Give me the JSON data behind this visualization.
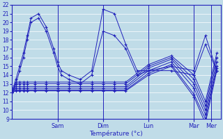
{
  "xlabel": "Température (°c)",
  "bg_color": "#c0dce8",
  "line_color": "#2020bb",
  "ylim": [
    9,
    22
  ],
  "yticks": [
    9,
    10,
    11,
    12,
    13,
    14,
    15,
    16,
    17,
    18,
    19,
    20,
    21,
    22
  ],
  "xlim": [
    0,
    220
  ],
  "day_ticks": [
    48,
    96,
    144,
    192,
    210
  ],
  "day_labels": [
    "Sam",
    "Dim",
    "Lun",
    "Mar",
    "Mer"
  ],
  "series": [
    {
      "x": [
        0,
        4,
        8,
        12,
        16,
        20,
        28,
        36,
        44,
        48,
        52,
        60,
        72,
        84,
        96,
        108,
        120,
        132,
        144,
        168,
        192,
        204,
        216
      ],
      "y": [
        12.2,
        13.5,
        15.0,
        16.5,
        18.5,
        20.5,
        21.0,
        19.5,
        17.0,
        15.5,
        14.5,
        14.0,
        13.5,
        14.5,
        21.5,
        21.0,
        17.5,
        14.5,
        14.5,
        15.0,
        14.5,
        18.5,
        14.5
      ]
    },
    {
      "x": [
        0,
        4,
        8,
        12,
        16,
        20,
        28,
        36,
        44,
        48,
        52,
        60,
        72,
        84,
        96,
        108,
        120,
        132,
        144,
        168,
        192,
        204,
        216
      ],
      "y": [
        12.0,
        13.0,
        14.5,
        16.0,
        18.0,
        20.0,
        20.5,
        19.0,
        16.5,
        15.0,
        14.0,
        13.5,
        13.0,
        14.0,
        19.0,
        18.5,
        17.0,
        14.0,
        14.5,
        14.5,
        14.0,
        17.5,
        14.5
      ]
    },
    {
      "x": [
        0,
        4,
        8,
        12,
        16,
        24,
        36,
        48,
        60,
        72,
        84,
        96,
        108,
        120,
        144,
        168,
        192,
        204,
        216
      ],
      "y": [
        12.0,
        12.2,
        12.2,
        12.2,
        12.2,
        12.2,
        12.2,
        12.2,
        12.2,
        12.2,
        12.2,
        12.2,
        12.2,
        12.2,
        14.0,
        15.0,
        11.5,
        8.5,
        14.5
      ]
    },
    {
      "x": [
        0,
        4,
        8,
        12,
        16,
        24,
        36,
        48,
        60,
        72,
        84,
        96,
        108,
        120,
        144,
        168,
        192,
        204,
        216
      ],
      "y": [
        12.0,
        12.3,
        12.3,
        12.3,
        12.3,
        12.3,
        12.3,
        12.3,
        12.3,
        12.3,
        12.3,
        12.3,
        12.3,
        12.3,
        14.2,
        15.2,
        11.8,
        9.0,
        14.8
      ]
    },
    {
      "x": [
        0,
        4,
        8,
        12,
        16,
        24,
        36,
        48,
        60,
        72,
        84,
        96,
        108,
        120,
        144,
        168,
        192,
        204,
        216
      ],
      "y": [
        12.0,
        12.5,
        12.5,
        12.5,
        12.5,
        12.5,
        12.5,
        12.5,
        12.5,
        12.5,
        12.5,
        12.5,
        12.5,
        12.5,
        14.5,
        15.5,
        12.5,
        9.5,
        15.0
      ]
    },
    {
      "x": [
        0,
        4,
        8,
        12,
        16,
        24,
        36,
        48,
        60,
        72,
        84,
        96,
        108,
        120,
        144,
        168,
        192,
        204,
        216
      ],
      "y": [
        12.0,
        12.7,
        12.7,
        12.7,
        12.7,
        12.7,
        12.7,
        12.7,
        12.7,
        12.7,
        12.7,
        12.7,
        12.7,
        12.7,
        14.8,
        15.8,
        13.0,
        10.0,
        15.5
      ]
    },
    {
      "x": [
        0,
        4,
        8,
        12,
        16,
        24,
        36,
        48,
        60,
        72,
        84,
        96,
        108,
        120,
        144,
        168,
        192,
        204,
        216
      ],
      "y": [
        12.0,
        13.0,
        13.0,
        13.0,
        13.0,
        13.0,
        13.0,
        13.0,
        13.0,
        13.0,
        13.0,
        13.0,
        13.0,
        13.0,
        15.0,
        16.0,
        13.5,
        10.5,
        16.0
      ]
    },
    {
      "x": [
        0,
        4,
        8,
        12,
        16,
        24,
        36,
        48,
        60,
        72,
        84,
        96,
        108,
        120,
        144,
        168,
        192,
        204,
        216
      ],
      "y": [
        12.0,
        13.2,
        13.2,
        13.2,
        13.2,
        13.2,
        13.2,
        13.2,
        13.2,
        13.2,
        13.2,
        13.2,
        13.2,
        13.2,
        15.2,
        16.2,
        14.0,
        11.0,
        16.5
      ]
    }
  ]
}
